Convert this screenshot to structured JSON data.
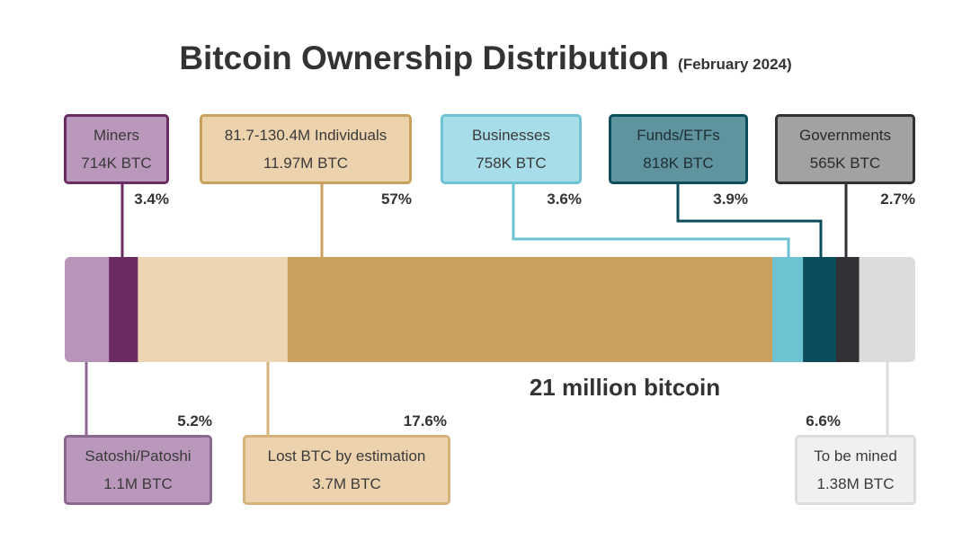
{
  "chart_data": {
    "type": "bar",
    "title": "Bitcoin Ownership Distribution",
    "subtitle": "(February 2024)",
    "total_label": "21 million bitcoin",
    "segments": [
      {
        "key": "satoshi",
        "name": "Satoshi/Patoshi",
        "amount": "1.1M BTC",
        "percent_label": "5.2%",
        "percent": 5.2,
        "color": "#b895b8",
        "box_fill": "#b998bb",
        "box_border": "#8c6790",
        "text_color": "#3a3a3a"
      },
      {
        "key": "miners",
        "name": "Miners",
        "amount": "714K BTC",
        "percent_label": "3.4%",
        "percent": 3.4,
        "color": "#6a2c62",
        "box_fill": "#b998bb",
        "box_border": "#6a2c62",
        "text_color": "#3a3a3a"
      },
      {
        "key": "lost",
        "name": "Lost BTC by estimation",
        "amount": "3.7M BTC",
        "percent_label": "17.6%",
        "percent": 17.6,
        "color": "#ecd5b2",
        "box_fill": "#ecd3ad",
        "box_border": "#d6b27c",
        "text_color": "#3a3a3a"
      },
      {
        "key": "individuals",
        "name": "81.7-130.4M Individuals",
        "amount": "11.97M BTC",
        "percent_label": "57%",
        "percent": 57,
        "color": "#c9a05e",
        "box_fill": "#ecd3ad",
        "box_border": "#c9a05e",
        "text_color": "#3a3a3a"
      },
      {
        "key": "businesses",
        "name": "Businesses",
        "amount": "758K BTC",
        "percent_label": "3.6%",
        "percent": 3.6,
        "color": "#6ec3d3",
        "box_fill": "#a7dde8",
        "box_border": "#6ec3d3",
        "text_color": "#3a3a3a"
      },
      {
        "key": "funds",
        "name": "Funds/ETFs",
        "amount": "818K BTC",
        "percent_label": "3.9%",
        "percent": 3.9,
        "color": "#0b4c5d",
        "box_fill": "#5f949f",
        "box_border": "#0b4c5d",
        "text_color": "#1e2e33"
      },
      {
        "key": "governments",
        "name": "Governments",
        "amount": "565K BTC",
        "percent_label": "2.7%",
        "percent": 2.7,
        "color": "#333135",
        "box_fill": "#a2a2a2",
        "box_border": "#333135",
        "text_color": "#2a2a2a"
      },
      {
        "key": "to_be_mined",
        "name": "To be mined",
        "amount": "1.38M BTC",
        "percent_label": "6.6%",
        "percent": 6.6,
        "color": "#dcdcdc",
        "box_fill": "#f0f0f0",
        "box_border": "#dcdcdc",
        "text_color": "#3a3a3a"
      }
    ]
  }
}
